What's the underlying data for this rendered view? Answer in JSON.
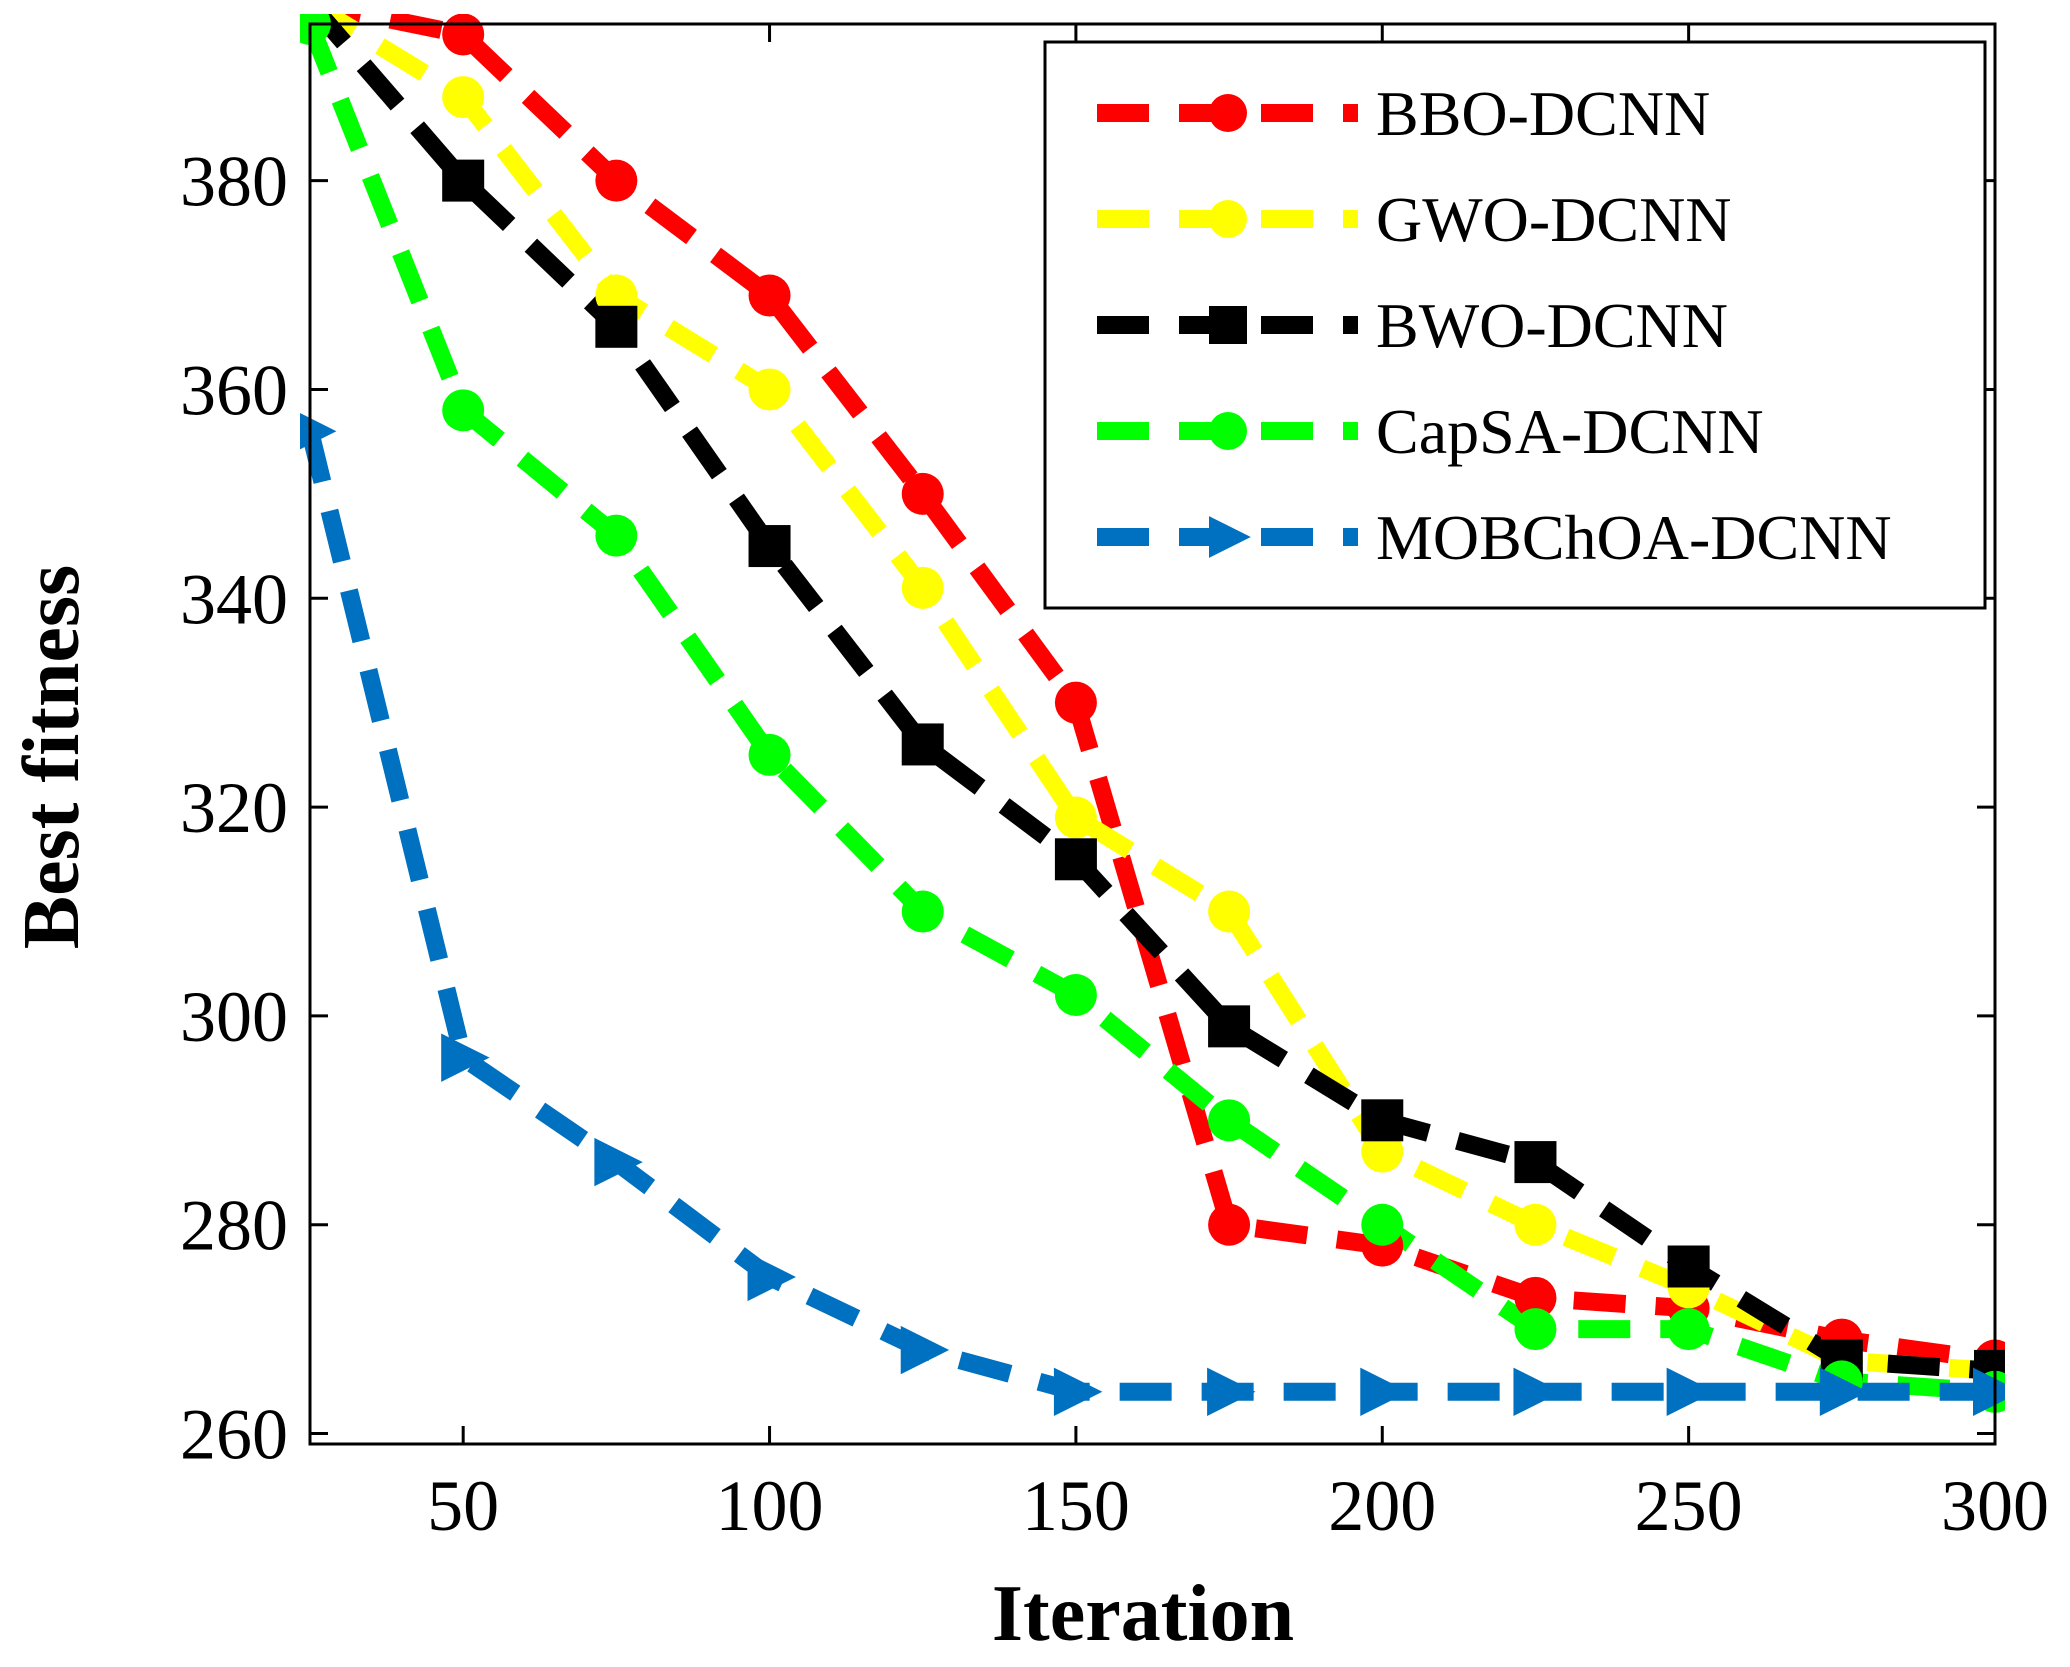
{
  "chart_data": {
    "type": "line",
    "xlabel": "Iteration",
    "ylabel": "Best fitness",
    "xlim": [
      25,
      300
    ],
    "ylim": [
      259,
      395
    ],
    "xticks": [
      50,
      100,
      150,
      200,
      250,
      300
    ],
    "yticks": [
      260,
      280,
      300,
      320,
      340,
      360,
      380
    ],
    "legend_position": "top-right",
    "x": [
      25,
      50,
      75,
      100,
      125,
      150,
      175,
      200,
      225,
      250,
      275,
      300
    ],
    "series": [
      {
        "name": "BBO-DCNN",
        "color": "#ff0000",
        "marker": "circle",
        "values": [
          397,
          394,
          380,
          369,
          350,
          330,
          280,
          278,
          273,
          272,
          269,
          267
        ]
      },
      {
        "name": "GWO-DCNN",
        "color": "#ffff00",
        "marker": "circle",
        "values": [
          397,
          388,
          369,
          360,
          341,
          319,
          310,
          287,
          280,
          274,
          267,
          266
        ]
      },
      {
        "name": "BWO-DCNN",
        "color": "#000000",
        "marker": "square",
        "values": [
          397,
          380,
          366,
          345,
          326,
          315,
          299,
          290,
          286,
          276,
          267,
          266
        ]
      },
      {
        "name": "CapSA-DCNN",
        "color": "#00ff00",
        "marker": "circle",
        "values": [
          395,
          358,
          346,
          325,
          310,
          302,
          290,
          280,
          270,
          270,
          265,
          264
        ]
      },
      {
        "name": "MOBChOA-DCNN",
        "color": "#0070c0",
        "marker": "triangle-right",
        "values": [
          356,
          296,
          286,
          275,
          268,
          264,
          264,
          264,
          264,
          264,
          264,
          264
        ]
      }
    ]
  }
}
